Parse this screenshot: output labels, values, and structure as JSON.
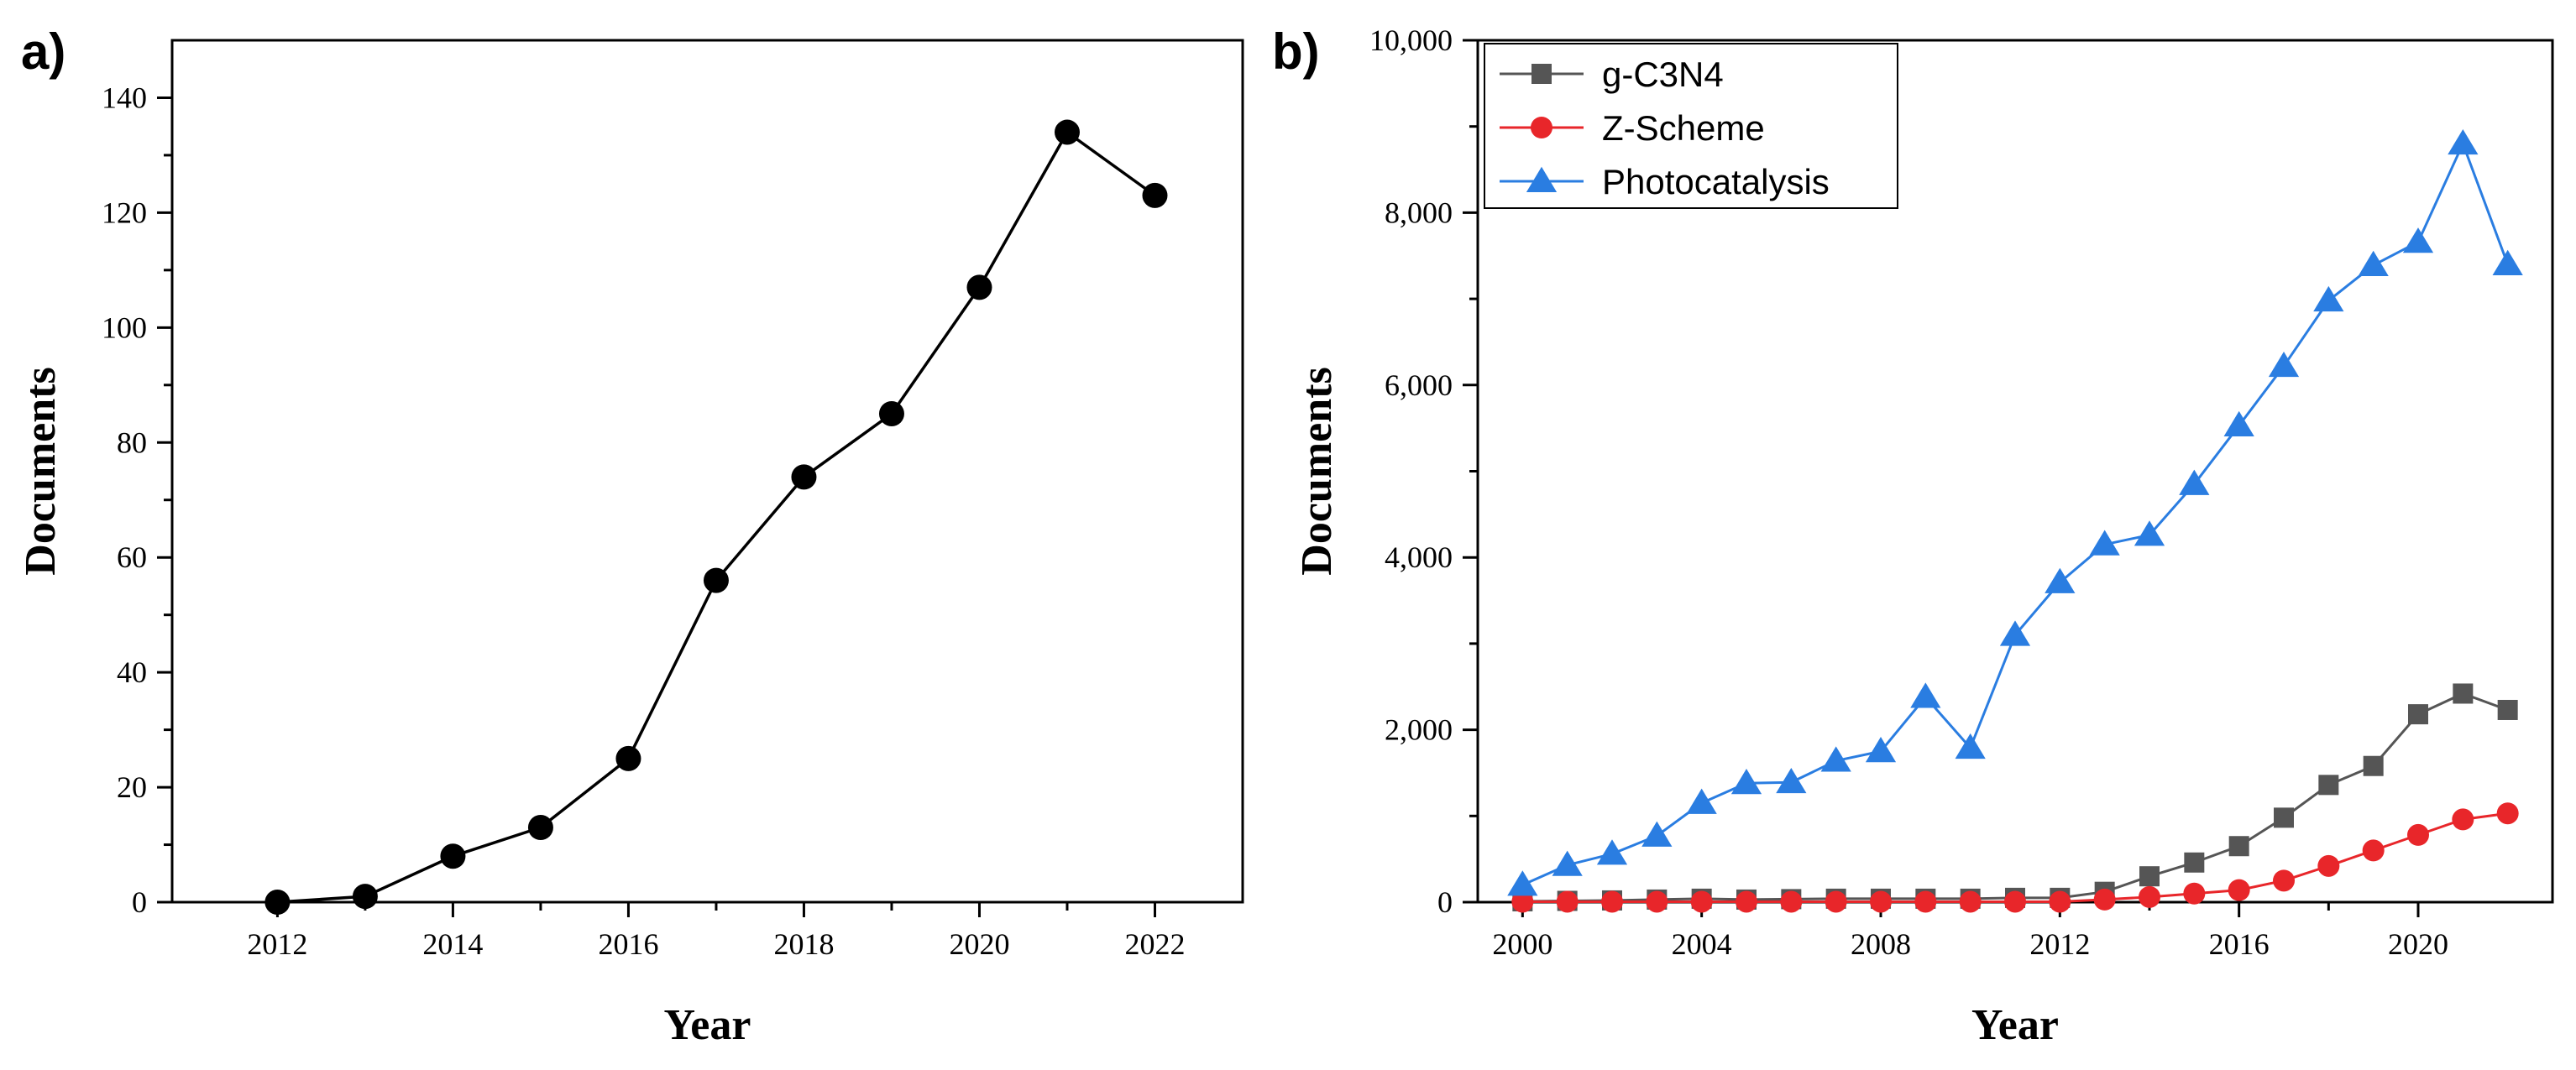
{
  "chart_data": [
    {
      "type": "line",
      "panel_label": "a)",
      "title": "",
      "xlabel": "Year",
      "ylabel": "Documents",
      "xlim": [
        2010.8,
        2023.0
      ],
      "ylim": [
        0,
        150
      ],
      "x_ticks": [
        2012,
        2014,
        2016,
        2018,
        2020,
        2022
      ],
      "x_tick_labels": [
        "2012",
        "2014",
        "2016",
        "2018",
        "2020",
        "2022"
      ],
      "y_ticks": [
        0,
        20,
        40,
        60,
        80,
        100,
        120,
        140
      ],
      "y_tick_labels": [
        "0",
        "20",
        "40",
        "60",
        "80",
        "100",
        "120",
        "140"
      ],
      "grid": false,
      "series": [
        {
          "name": "Documents",
          "color": "#000000",
          "marker": "circle",
          "x": [
            2012,
            2013,
            2014,
            2015,
            2016,
            2017,
            2018,
            2019,
            2020,
            2021,
            2022
          ],
          "values": [
            0,
            1,
            8,
            13,
            25,
            56,
            74,
            85,
            107,
            134,
            123
          ]
        }
      ]
    },
    {
      "type": "line",
      "panel_label": "b)",
      "title": "",
      "xlabel": "Year",
      "ylabel": "Documents",
      "xlim": [
        1999.0,
        2023.0
      ],
      "ylim": [
        0,
        10000
      ],
      "x_ticks": [
        2000,
        2004,
        2008,
        2012,
        2016,
        2020
      ],
      "x_tick_labels": [
        "2000",
        "2004",
        "2008",
        "2012",
        "2016",
        "2020"
      ],
      "y_ticks": [
        0,
        2000,
        4000,
        6000,
        8000,
        10000
      ],
      "y_tick_labels": [
        "0",
        "2,000",
        "4,000",
        "6,000",
        "8,000",
        "10,000"
      ],
      "grid": false,
      "legend_position": "top-left",
      "series": [
        {
          "name": "g-C3N4",
          "color": "#555555",
          "marker": "square",
          "x": [
            2000,
            2001,
            2002,
            2003,
            2004,
            2005,
            2006,
            2007,
            2008,
            2009,
            2010,
            2011,
            2012,
            2013,
            2014,
            2015,
            2016,
            2017,
            2018,
            2019,
            2020,
            2021,
            2022
          ],
          "values": [
            10,
            15,
            20,
            30,
            40,
            30,
            35,
            40,
            40,
            40,
            40,
            50,
            50,
            120,
            300,
            460,
            650,
            980,
            1360,
            1580,
            2180,
            2420,
            2230
          ]
        },
        {
          "name": "Z-Scheme",
          "color": "#e8262a",
          "marker": "circle",
          "x": [
            2000,
            2001,
            2002,
            2003,
            2004,
            2005,
            2006,
            2007,
            2008,
            2009,
            2010,
            2011,
            2012,
            2013,
            2014,
            2015,
            2016,
            2017,
            2018,
            2019,
            2020,
            2021,
            2022
          ],
          "values": [
            5,
            5,
            5,
            5,
            5,
            5,
            5,
            5,
            5,
            5,
            5,
            5,
            5,
            30,
            60,
            100,
            140,
            250,
            420,
            600,
            780,
            960,
            1030
          ]
        },
        {
          "name": "Photocatalysis",
          "color": "#2a7de1",
          "marker": "triangle",
          "x": [
            2000,
            2001,
            2002,
            2003,
            2004,
            2005,
            2006,
            2007,
            2008,
            2009,
            2010,
            2011,
            2012,
            2013,
            2014,
            2015,
            2016,
            2017,
            2018,
            2019,
            2020,
            2021,
            2022
          ],
          "values": [
            200,
            430,
            560,
            770,
            1150,
            1380,
            1390,
            1640,
            1750,
            2380,
            1790,
            3100,
            3710,
            4150,
            4260,
            4850,
            5530,
            6220,
            6980,
            7390,
            7660,
            8800,
            7400
          ]
        }
      ]
    }
  ]
}
